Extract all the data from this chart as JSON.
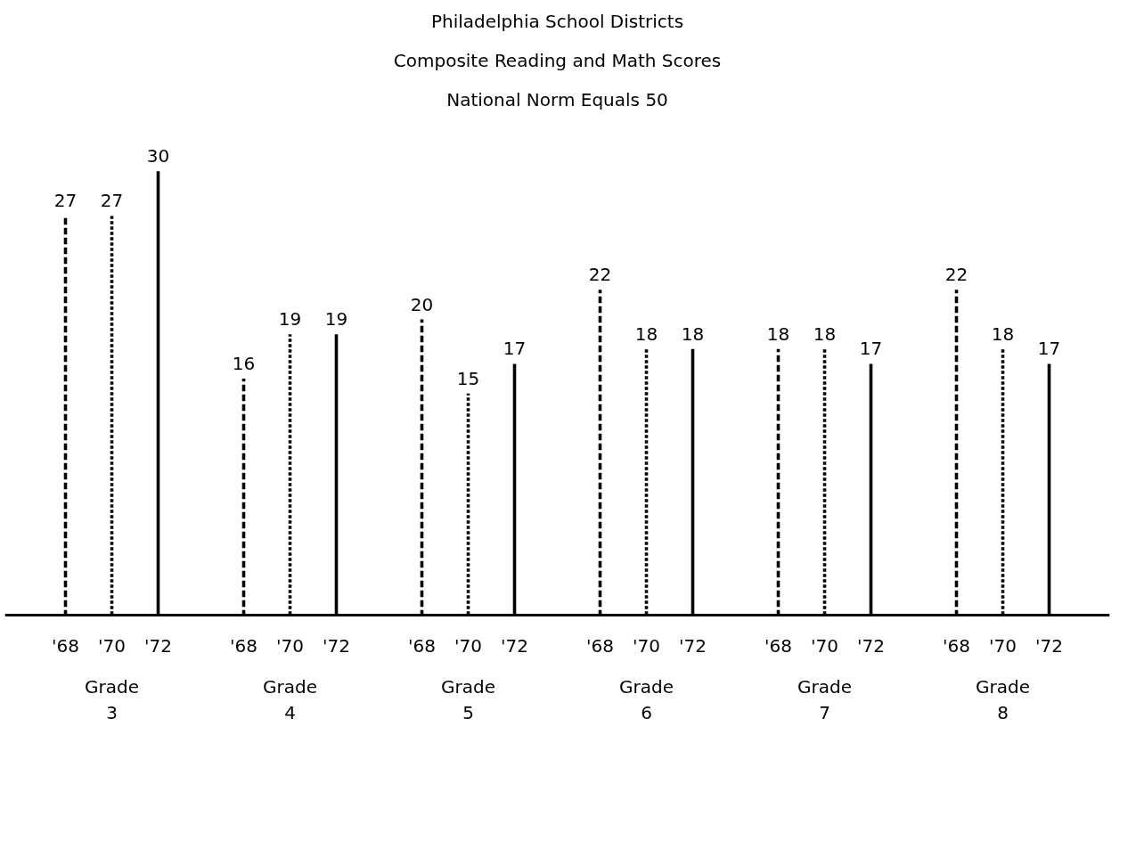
{
  "chart_data": {
    "type": "bar",
    "title": "Philadelphia School Districts",
    "subtitle": "Composite Reading and Math Scores",
    "annotations": [
      "National Norm Equals 50"
    ],
    "categories": [
      "Grade\n3",
      "Grade\n4",
      "Grade\n5",
      "Grade\n6",
      "Grade\n7",
      "Grade\n8"
    ],
    "data_labels": true,
    "series": [
      {
        "name": "'68",
        "color": "#000000",
        "line_style": "dashed",
        "values": [
          27,
          16,
          20,
          22,
          18,
          22
        ]
      },
      {
        "name": "'70",
        "color": "#000000",
        "line_style": "dotted",
        "values": [
          27,
          19,
          15,
          18,
          18,
          18
        ]
      },
      {
        "name": "'72",
        "color": "#000000",
        "line_style": "solid",
        "values": [
          30,
          19,
          17,
          18,
          17,
          17
        ]
      }
    ]
  }
}
